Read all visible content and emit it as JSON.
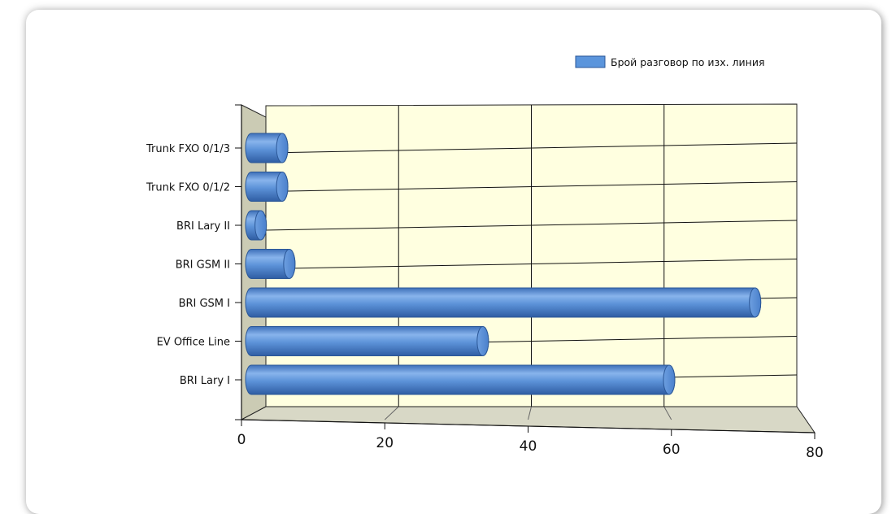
{
  "chart_data": {
    "type": "bar",
    "orientation": "horizontal",
    "categories": [
      "BRI Lary I",
      "EV Office Line",
      "BRI GSM I",
      "BRI GSM II",
      "BRI Lary II",
      "Trunk FXO 0/1/2",
      "Trunk FXO 0/1/3"
    ],
    "series": [
      {
        "name": "Брой разговор по изх. линия",
        "values": [
          59,
          33,
          71,
          6,
          2,
          5,
          5
        ],
        "color": "#5b95dc"
      }
    ],
    "xlim": [
      0,
      80
    ],
    "xticks": [
      0,
      20,
      40,
      60,
      80
    ],
    "grid": true,
    "legend": "top-right",
    "plot_background": "#ffffe0",
    "wall_side_color": "#cbcbb4",
    "floor_color": "#d8d8c6"
  }
}
